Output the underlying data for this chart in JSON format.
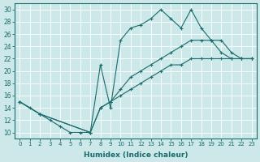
{
  "xlabel": "Humidex (Indice chaleur)",
  "background_color": "#cce8e8",
  "line_color": "#1a6b6b",
  "grid_color": "#b8d8d8",
  "xlim": [
    -0.5,
    23.5
  ],
  "ylim": [
    9,
    31
  ],
  "xticks": [
    0,
    1,
    2,
    3,
    4,
    5,
    6,
    7,
    8,
    9,
    10,
    11,
    12,
    13,
    14,
    15,
    16,
    17,
    18,
    19,
    20,
    21,
    22,
    23
  ],
  "yticks": [
    10,
    12,
    14,
    16,
    18,
    20,
    22,
    24,
    26,
    28,
    30
  ],
  "line1_x": [
    0,
    1,
    2,
    3,
    4,
    5,
    6,
    7,
    8,
    9,
    10,
    11,
    12,
    13,
    14,
    15,
    16,
    17,
    18,
    19,
    20,
    21,
    22,
    23
  ],
  "line1_y": [
    15,
    14,
    13,
    12,
    11,
    10,
    10,
    10,
    21,
    14,
    25,
    27,
    27.5,
    28.5,
    30,
    28.5,
    27,
    30,
    27,
    25,
    23,
    22,
    22,
    22
  ],
  "line2_x": [
    0,
    2,
    7,
    8,
    9,
    10,
    11,
    12,
    13,
    14,
    15,
    16,
    17,
    18,
    19,
    20,
    21,
    22,
    23
  ],
  "line2_y": [
    15,
    13,
    10,
    14,
    15,
    17,
    19,
    20,
    21,
    22,
    23,
    24,
    25,
    25,
    25,
    25,
    23,
    22,
    22
  ],
  "line3_x": [
    0,
    2,
    7,
    8,
    9,
    10,
    11,
    12,
    13,
    14,
    15,
    16,
    17,
    18,
    19,
    20,
    21,
    22,
    23
  ],
  "line3_y": [
    15,
    13,
    10,
    14,
    15,
    16,
    17,
    18,
    19,
    20,
    21,
    21,
    22,
    22,
    22,
    22,
    22,
    22,
    22
  ]
}
